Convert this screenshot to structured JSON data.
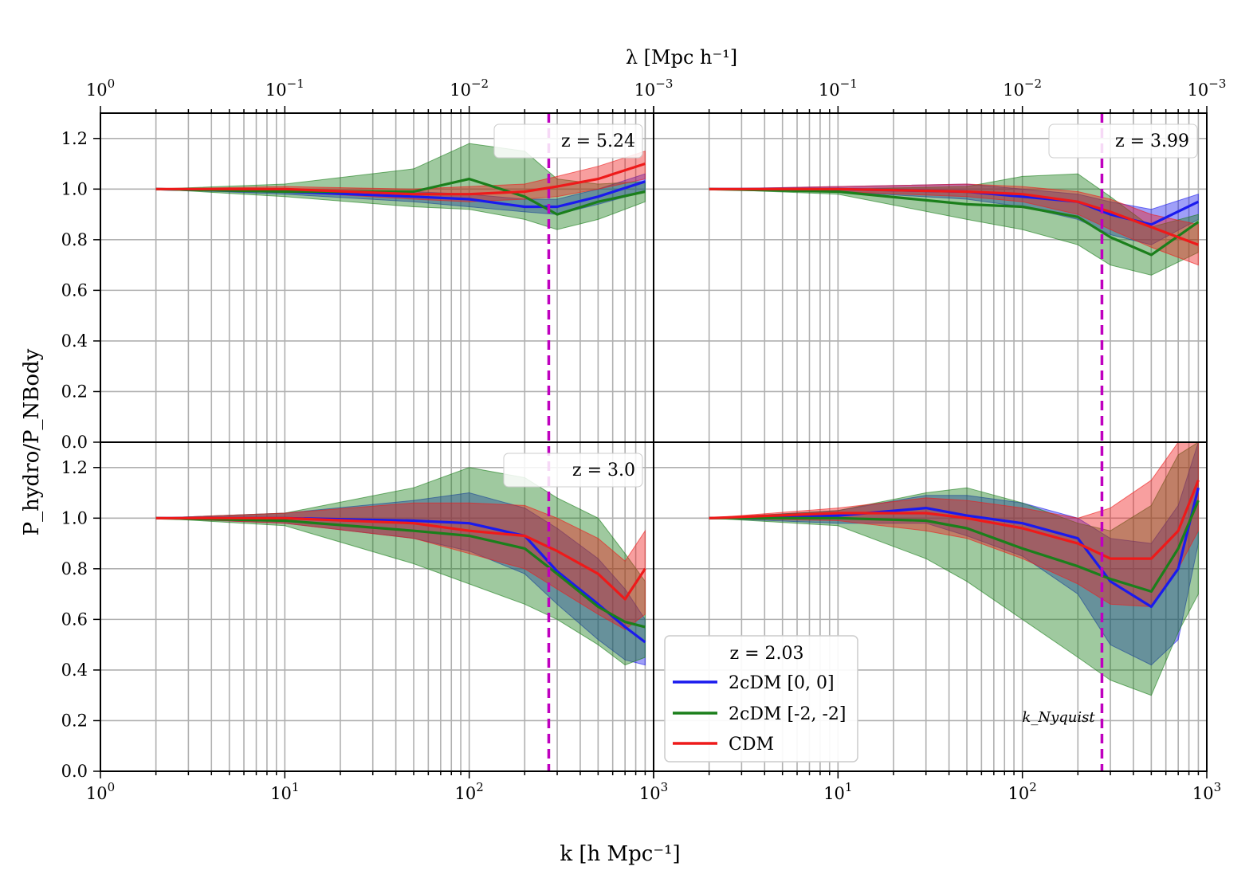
{
  "chart_data": {
    "type": "line",
    "title": "",
    "xlabel": "k [h Mpc⁻¹]",
    "ylabel": "P_hydro/P_NBody",
    "top_xlabel": "λ [Mpc h⁻¹]",
    "xscale": "log",
    "xlim": [
      1,
      1000
    ],
    "ylim": [
      0,
      1.3
    ],
    "grid": true,
    "k_nyquist": 270,
    "k_nyquist_label": "k_Nyquist",
    "x_ticks": [
      {
        "base": "10",
        "exp": "0"
      },
      {
        "base": "10",
        "exp": "1"
      },
      {
        "base": "10",
        "exp": "2"
      },
      {
        "base": "10",
        "exp": "3"
      }
    ],
    "top_ticks": [
      {
        "base": "10",
        "exp": "0"
      },
      {
        "base": "10",
        "exp": "−1"
      },
      {
        "base": "10",
        "exp": "−2"
      },
      {
        "base": "10",
        "exp": "−3"
      }
    ],
    "y_ticks": [
      "0.0",
      "0.2",
      "0.4",
      "0.6",
      "0.8",
      "1.0",
      "1.2"
    ],
    "colors": {
      "2cDM [0, 0]": "#1a1aee",
      "2cDM [-2, -2]": "#1b7f1b",
      "CDM": "#ee1a1a",
      "k_nyquist_line": "#bf00bf"
    },
    "legend": {
      "title": "z = 2.03",
      "entries": [
        "2cDM [0, 0]",
        "2cDM [-2, -2]",
        "CDM"
      ],
      "position": "lower-left of bottom-right panel"
    },
    "panels": [
      {
        "label": "z = 5.24",
        "position": "top-left",
        "series": [
          {
            "name": "2cDM [0, 0]",
            "k": [
              2,
              10,
              50,
              100,
              200,
              300,
              500,
              900
            ],
            "y": [
              1.0,
              0.99,
              0.97,
              0.96,
              0.93,
              0.93,
              0.97,
              1.03
            ],
            "lower": [
              1.0,
              0.98,
              0.95,
              0.93,
              0.91,
              0.9,
              0.94,
              0.99
            ],
            "upper": [
              1.0,
              1.0,
              0.99,
              0.98,
              0.96,
              0.96,
              1.0,
              1.06
            ]
          },
          {
            "name": "2cDM [-2, -2]",
            "k": [
              2,
              10,
              50,
              100,
              200,
              300,
              500,
              900
            ],
            "y": [
              1.0,
              0.99,
              0.99,
              1.04,
              0.97,
              0.9,
              0.95,
              0.99
            ],
            "lower": [
              1.0,
              0.97,
              0.93,
              0.92,
              0.88,
              0.84,
              0.88,
              0.95
            ],
            "upper": [
              1.0,
              1.02,
              1.08,
              1.18,
              1.15,
              1.04,
              1.02,
              1.03
            ]
          },
          {
            "name": "CDM",
            "k": [
              2,
              10,
              50,
              100,
              200,
              300,
              500,
              900
            ],
            "y": [
              1.0,
              1.0,
              0.98,
              0.98,
              0.99,
              1.01,
              1.04,
              1.1
            ],
            "lower": [
              1.0,
              0.99,
              0.96,
              0.95,
              0.96,
              0.97,
              1.0,
              1.04
            ],
            "upper": [
              1.0,
              1.01,
              1.0,
              1.01,
              1.02,
              1.05,
              1.09,
              1.15
            ]
          }
        ]
      },
      {
        "label": "z = 3.99",
        "position": "top-right",
        "series": [
          {
            "name": "2cDM [0, 0]",
            "k": [
              2,
              10,
              50,
              100,
              200,
              300,
              500,
              900
            ],
            "y": [
              1.0,
              1.0,
              0.99,
              0.97,
              0.95,
              0.9,
              0.86,
              0.95
            ],
            "lower": [
              1.0,
              0.99,
              0.96,
              0.93,
              0.88,
              0.82,
              0.78,
              0.88
            ],
            "upper": [
              1.0,
              1.01,
              1.02,
              1.0,
              0.98,
              0.95,
              0.92,
              0.98
            ]
          },
          {
            "name": "2cDM [-2, -2]",
            "k": [
              2,
              10,
              50,
              100,
              200,
              300,
              500,
              900
            ],
            "y": [
              1.0,
              0.99,
              0.94,
              0.93,
              0.89,
              0.81,
              0.74,
              0.87
            ],
            "lower": [
              1.0,
              0.98,
              0.88,
              0.84,
              0.78,
              0.7,
              0.66,
              0.75
            ],
            "upper": [
              1.0,
              1.0,
              1.01,
              1.05,
              1.06,
              0.97,
              0.85,
              0.9
            ]
          },
          {
            "name": "CDM",
            "k": [
              2,
              10,
              50,
              100,
              200,
              300,
              500,
              900
            ],
            "y": [
              1.0,
              1.0,
              0.99,
              0.98,
              0.95,
              0.91,
              0.85,
              0.78
            ],
            "lower": [
              1.0,
              0.99,
              0.97,
              0.95,
              0.9,
              0.84,
              0.77,
              0.7
            ],
            "upper": [
              1.0,
              1.01,
              1.02,
              1.01,
              0.99,
              0.96,
              0.9,
              0.86
            ]
          }
        ]
      },
      {
        "label": "z = 3.0",
        "position": "bottom-left",
        "series": [
          {
            "name": "2cDM [0, 0]",
            "k": [
              2,
              10,
              50,
              100,
              200,
              300,
              500,
              700,
              900
            ],
            "y": [
              1.0,
              1.0,
              0.99,
              0.98,
              0.93,
              0.79,
              0.66,
              0.57,
              0.51
            ],
            "lower": [
              1.0,
              0.98,
              0.92,
              0.87,
              0.78,
              0.66,
              0.52,
              0.44,
              0.42
            ],
            "upper": [
              1.0,
              1.02,
              1.07,
              1.1,
              1.04,
              0.96,
              0.84,
              0.72,
              0.6
            ]
          },
          {
            "name": "2cDM [-2, -2]",
            "k": [
              2,
              10,
              50,
              100,
              200,
              300,
              500,
              700,
              900
            ],
            "y": [
              1.0,
              0.99,
              0.95,
              0.93,
              0.88,
              0.78,
              0.65,
              0.59,
              0.57
            ],
            "lower": [
              1.0,
              0.97,
              0.82,
              0.74,
              0.66,
              0.6,
              0.5,
              0.42,
              0.45
            ],
            "upper": [
              1.0,
              1.02,
              1.12,
              1.2,
              1.16,
              1.08,
              1.0,
              0.86,
              0.75
            ]
          },
          {
            "name": "CDM",
            "k": [
              2,
              10,
              50,
              100,
              200,
              300,
              500,
              700,
              900
            ],
            "y": [
              1.0,
              1.0,
              0.98,
              0.95,
              0.93,
              0.87,
              0.78,
              0.68,
              0.8
            ],
            "lower": [
              1.0,
              0.98,
              0.92,
              0.86,
              0.8,
              0.72,
              0.62,
              0.56,
              0.62
            ],
            "upper": [
              1.0,
              1.02,
              1.06,
              1.06,
              1.05,
              1.0,
              0.92,
              0.83,
              0.95
            ]
          }
        ]
      },
      {
        "label": "z = 2.03",
        "position": "bottom-right",
        "series": [
          {
            "name": "2cDM [0, 0]",
            "k": [
              2,
              10,
              30,
              50,
              100,
              200,
              300,
              500,
              700,
              900
            ],
            "y": [
              1.0,
              1.01,
              1.04,
              1.01,
              0.98,
              0.92,
              0.75,
              0.65,
              0.8,
              1.12
            ],
            "lower": [
              1.0,
              0.98,
              0.98,
              0.93,
              0.85,
              0.7,
              0.5,
              0.42,
              0.52,
              0.9
            ],
            "upper": [
              1.0,
              1.03,
              1.09,
              1.09,
              1.06,
              1.0,
              0.92,
              0.9,
              1.05,
              1.3
            ]
          },
          {
            "name": "2cDM [-2, -2]",
            "k": [
              2,
              10,
              30,
              50,
              100,
              200,
              300,
              500,
              700,
              900
            ],
            "y": [
              1.0,
              1.0,
              0.99,
              0.96,
              0.88,
              0.81,
              0.76,
              0.71,
              0.88,
              1.07
            ],
            "lower": [
              1.0,
              0.97,
              0.84,
              0.75,
              0.6,
              0.45,
              0.36,
              0.3,
              0.55,
              0.7
            ],
            "upper": [
              1.0,
              1.03,
              1.1,
              1.12,
              1.06,
              0.98,
              0.95,
              1.05,
              1.25,
              1.3
            ]
          },
          {
            "name": "CDM",
            "k": [
              2,
              10,
              30,
              50,
              100,
              200,
              300,
              500,
              700,
              900
            ],
            "y": [
              1.0,
              1.02,
              1.02,
              1.0,
              0.96,
              0.9,
              0.84,
              0.84,
              0.95,
              1.15
            ],
            "lower": [
              1.0,
              0.99,
              0.95,
              0.92,
              0.84,
              0.74,
              0.66,
              0.65,
              0.8,
              0.95
            ],
            "upper": [
              1.0,
              1.04,
              1.08,
              1.07,
              1.04,
              1.0,
              1.04,
              1.15,
              1.3,
              1.3
            ]
          }
        ]
      }
    ]
  }
}
